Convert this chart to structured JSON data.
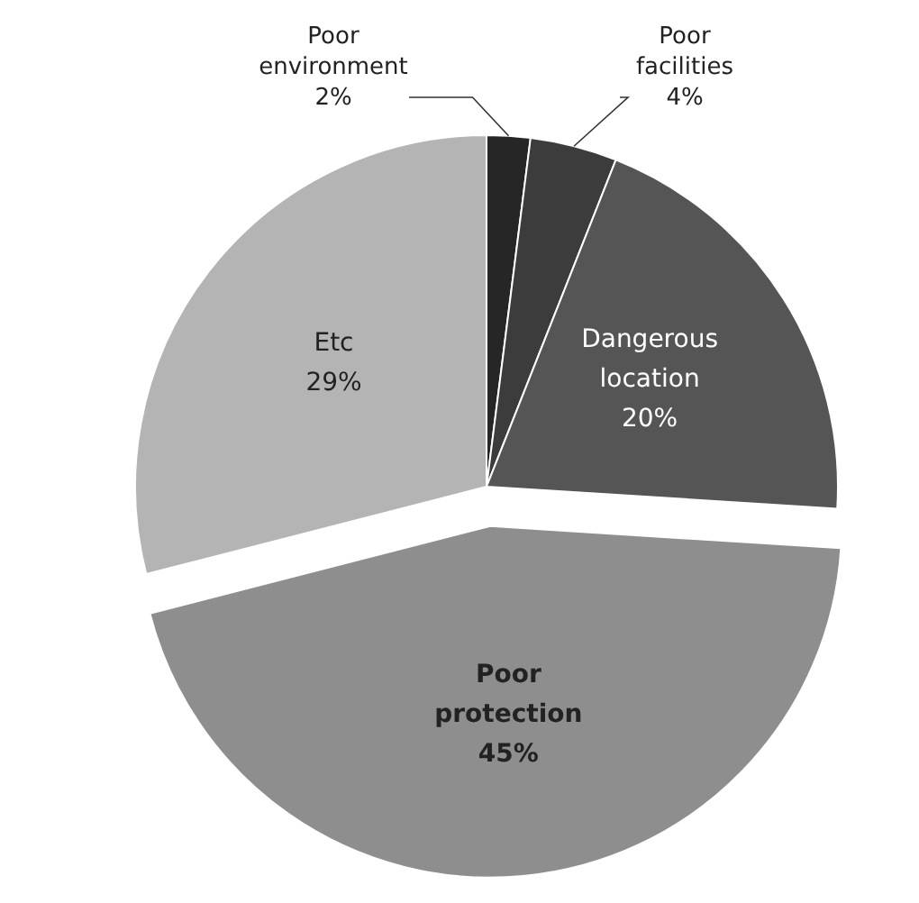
{
  "chart_data": {
    "type": "pie",
    "categories": [
      "Poor environment",
      "Poor facilities",
      "Dangerous location",
      "Poor protection",
      "Etc"
    ],
    "values": [
      2,
      4,
      20,
      45,
      29
    ],
    "value_labels": [
      "2%",
      "4%",
      "20%",
      "45%",
      "29%"
    ],
    "colors": [
      "#262626",
      "#3c3c3c",
      "#555555",
      "#8e8e8e",
      "#b4b4b4"
    ]
  }
}
